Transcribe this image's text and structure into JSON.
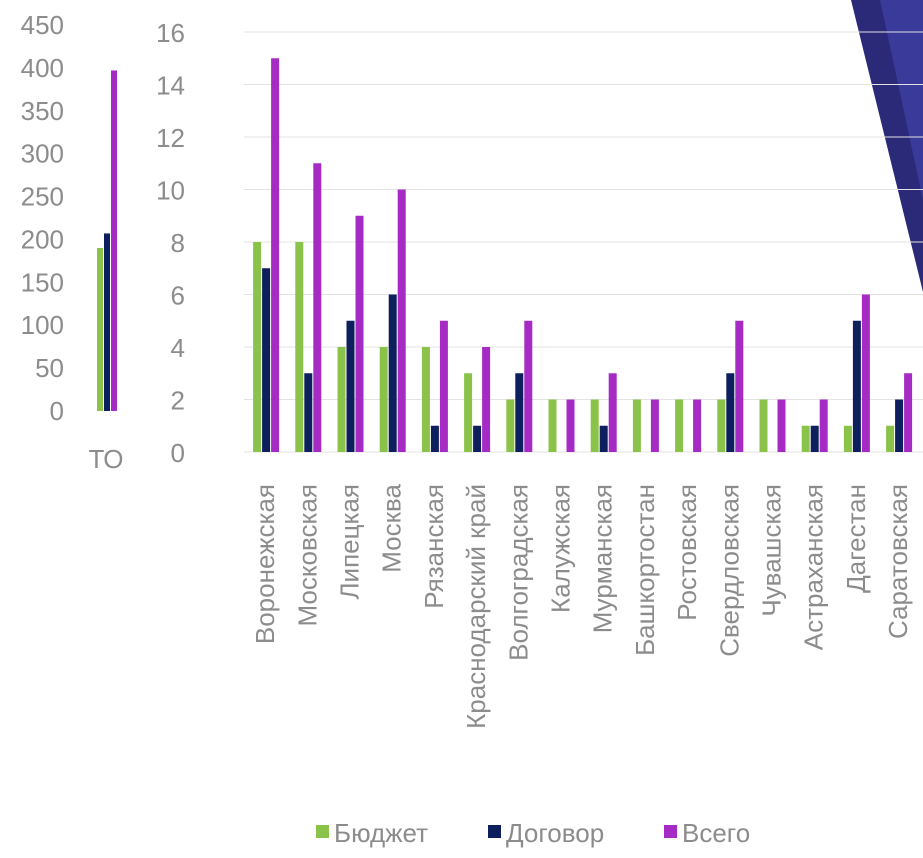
{
  "colors": {
    "budget": "#8bc34a",
    "contract": "#0d1f5c",
    "total": "#a52bc4",
    "grid": "#e3e3e3",
    "axis_text": "#8c8c8c",
    "decor_dark": "#2a2a78",
    "decor_mid": "#3a3a9a"
  },
  "legend": {
    "items": [
      {
        "label": "Бюджет",
        "color_key": "budget"
      },
      {
        "label": "Договор",
        "color_key": "contract"
      },
      {
        "label": "Всего",
        "color_key": "total"
      }
    ]
  },
  "chart_data": [
    {
      "type": "bar",
      "categories": [
        "ТО"
      ],
      "series": [
        {
          "name": "Бюджет",
          "values": [
            190
          ]
        },
        {
          "name": "Договор",
          "values": [
            207
          ]
        },
        {
          "name": "Всего",
          "values": [
            397
          ]
        }
      ],
      "yticks": [
        "0",
        "50",
        "100",
        "150",
        "200",
        "250",
        "300",
        "350",
        "400",
        "450"
      ],
      "ylim": [
        0,
        450
      ],
      "grid": false,
      "note_category_label": "ТО"
    },
    {
      "type": "bar",
      "categories": [
        "Воронежская",
        "Московская",
        "Липецкая",
        "Москва",
        "Рязанская",
        "Краснодарский край",
        "Волгоградская",
        "Калужская",
        "Мурманская",
        "Башкортостан",
        "Ростовская",
        "Свердловская",
        "Чувашская",
        "Астраханская",
        "Дагестан",
        "Саратовская"
      ],
      "series": [
        {
          "name": "Бюджет",
          "values": [
            8,
            8,
            4,
            4,
            4,
            3,
            2,
            2,
            2,
            2,
            2,
            2,
            2,
            1,
            1,
            1
          ]
        },
        {
          "name": "Договор",
          "values": [
            7,
            3,
            5,
            6,
            1,
            1,
            3,
            0,
            1,
            0,
            0,
            3,
            0,
            1,
            5,
            2
          ]
        },
        {
          "name": "Всего",
          "values": [
            15,
            11,
            9,
            10,
            5,
            4,
            5,
            2,
            3,
            2,
            2,
            5,
            2,
            2,
            6,
            3
          ]
        }
      ],
      "yticks": [
        "0",
        "2",
        "4",
        "6",
        "8",
        "10",
        "12",
        "14",
        "16"
      ],
      "ylim": [
        0,
        16
      ],
      "grid": true,
      "legend_position": "bottom"
    }
  ]
}
